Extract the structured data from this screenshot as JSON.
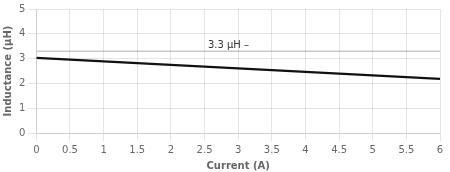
{
  "chart_data": {
    "type": "line",
    "xlabel": "Current (A)",
    "ylabel": "Inductance (μH)",
    "x": [
      0,
      6.0
    ],
    "series": [
      {
        "values": [
          3.03,
          2.18
        ],
        "color": "#111111"
      }
    ],
    "xlim": [
      0,
      6.0
    ],
    "ylim": [
      0,
      5
    ],
    "xticks": [
      0,
      0.5,
      1.0,
      1.5,
      2.0,
      2.5,
      3.0,
      3.5,
      4.0,
      4.5,
      5.0,
      5.5,
      6.0
    ],
    "yticks": [
      0,
      1,
      2,
      3,
      4,
      5
    ],
    "grid": true,
    "reference_lines": [
      {
        "y": 3.3,
        "color": "#999999"
      }
    ],
    "annotations": [
      {
        "text": "3.3 μH –",
        "x": 2.55,
        "y": 3.3
      }
    ]
  }
}
